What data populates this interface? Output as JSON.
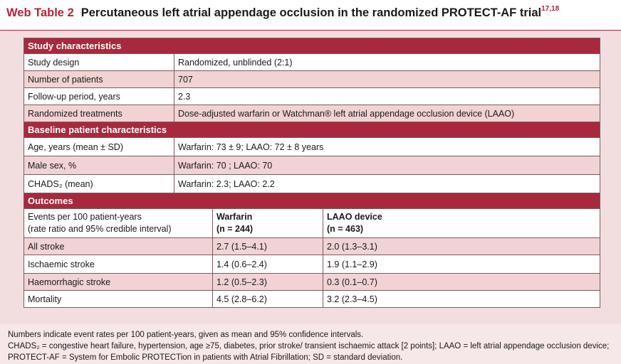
{
  "caption": {
    "label": "Web Table 2",
    "title": "Percutaneous left atrial appendage occlusion in the randomized PROTECT-AF trial",
    "refs": "17,18"
  },
  "sections": {
    "study": "Study characteristics",
    "baseline": "Baseline patient characteristics",
    "outcomes": "Outcomes"
  },
  "study": [
    {
      "label": "Study design",
      "value": "Randomized, unblinded (2:1)"
    },
    {
      "label": "Number of patients",
      "value": "707"
    },
    {
      "label": "Follow-up period, years",
      "value": "2.3"
    },
    {
      "label": "Randomized treatments",
      "value": "Dose-adjusted warfarin or Watchman® left atrial appendage occlusion device (LAAO)"
    }
  ],
  "baseline": [
    {
      "label": "Age, years (mean ± SD)",
      "value": "Warfarin: 73 ± 9; LAAO: 72 ± 8 years"
    },
    {
      "label": "Male sex, %",
      "value": "Warfarin: 70 ; LAAO: 70"
    },
    {
      "label": "CHADS₂ (mean)",
      "value": "Warfarin: 2.3; LAAO: 2.2"
    }
  ],
  "outcomes_header": {
    "col1_line1": "Events per 100 patient-years",
    "col1_line2": "(rate ratio and 95% credible interval)",
    "col2_line1": "Warfarin",
    "col2_line2": "(n = 244)",
    "col3_line1": "LAAO device",
    "col3_line2": "(n = 463)"
  },
  "outcomes": [
    {
      "label": "All stroke",
      "warfarin": "2.7 (1.5–4.1)",
      "laao": "2.0 (1.3–3.1)"
    },
    {
      "label": "Ischaemic stroke",
      "warfarin": "1.4 (0.6–2.4)",
      "laao": "1.9 (1.1–2.9)"
    },
    {
      "label": "Haemorrhagic stroke",
      "warfarin": "1.2 (0.5–2.3)",
      "laao": "0.3 (0.1–0.7)"
    },
    {
      "label": "Mortality",
      "warfarin": "4.5 (2.8–6.2)",
      "laao": "3.2 (2.3–4.5)"
    }
  ],
  "footer": [
    "Numbers indicate event rates per 100 patient-years, given as mean and 95% confidence intervals.",
    "CHADS₂ = congestive heart failure, hypertension, age ≥75, diabetes, prior stroke/ transient ischaemic attack [2 points]; LAAO = left atrial appendage occlusion device;",
    "PROTECT-AF = System for Embolic PROTECTion in patients with Atrial Fibrillation; SD = standard deviation."
  ],
  "colors": {
    "accent": "#b5233a",
    "section_header": "#a8293d",
    "row_highlight": "#f1d3d4",
    "panel": "#f3dedf"
  }
}
